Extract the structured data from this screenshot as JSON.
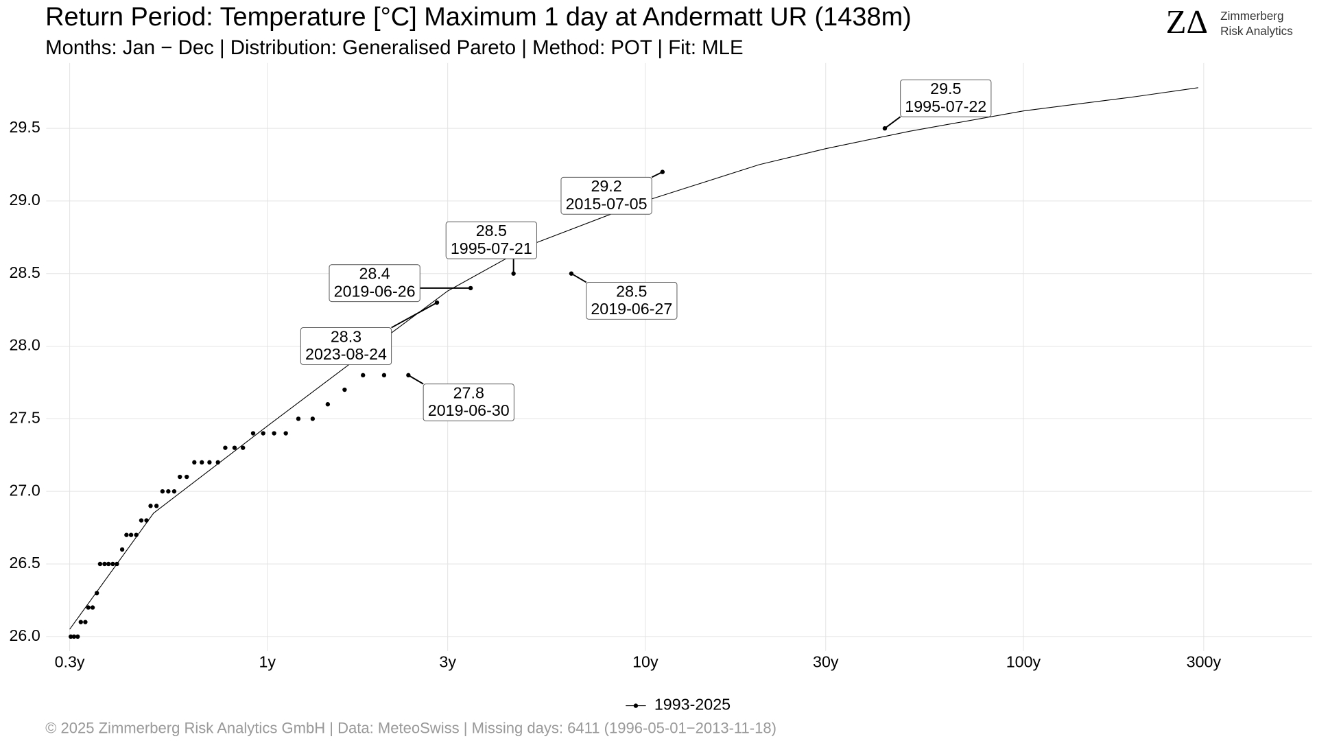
{
  "chart_data": {
    "type": "scatter",
    "title": "Return Period: Temperature [°C] Maximum 1 day at Andermatt  UR (1438m)",
    "subtitle": "Months: Jan − Dec | Distribution: Generalised Pareto | Method: POT | Fit: MLE",
    "footer": "©  2025 Zimmerberg Risk Analytics GmbH | Data: MeteoSwiss | Missing days: 6411 (1996-05-01−2013-11-18)",
    "logo": {
      "mark": "ZΔ",
      "line1": "Zimmerberg",
      "line2": "Risk Analytics"
    },
    "log_x": true,
    "grid": true,
    "legend": "bottom",
    "xlim": [
      0.26,
      580
    ],
    "ylim": [
      25.9,
      29.95
    ],
    "xticks": [
      {
        "value": 0.3,
        "label": "0.3y"
      },
      {
        "value": 1,
        "label": "1y"
      },
      {
        "value": 3,
        "label": "3y"
      },
      {
        "value": 10,
        "label": "10y"
      },
      {
        "value": 30,
        "label": "30y"
      },
      {
        "value": 100,
        "label": "100y"
      },
      {
        "value": 300,
        "label": "300y"
      }
    ],
    "yticks": [
      {
        "value": 26,
        "label": "26.0"
      },
      26.5,
      {
        "value": 27,
        "label": "27.0"
      },
      27.5,
      {
        "value": 28,
        "label": "28.0"
      },
      28.5,
      {
        "value": 29,
        "label": "29.0"
      },
      29.5
    ],
    "series": [
      {
        "name": "1993-2025",
        "color": "#000000",
        "x": [
          0.302,
          0.308,
          0.315,
          0.321,
          0.33,
          0.336,
          0.345,
          0.354,
          0.361,
          0.371,
          0.38,
          0.39,
          0.4,
          0.413,
          0.424,
          0.436,
          0.45,
          0.464,
          0.479,
          0.491,
          0.509,
          0.528,
          0.547,
          0.567,
          0.587,
          0.612,
          0.641,
          0.671,
          0.703,
          0.74,
          0.774,
          0.819,
          0.862,
          0.917,
          0.975,
          1.042,
          1.119,
          1.208,
          1.318,
          1.445,
          1.601,
          1.791,
          2.036,
          2.361,
          2.81,
          3.45,
          4.48,
          6.37,
          11.1,
          43.0
        ],
        "values": [
          26.0,
          26.0,
          26.0,
          26.1,
          26.1,
          26.2,
          26.2,
          26.3,
          26.5,
          26.5,
          26.5,
          26.5,
          26.5,
          26.6,
          26.7,
          26.7,
          26.7,
          26.8,
          26.8,
          26.9,
          26.9,
          27.0,
          27.0,
          27.0,
          27.1,
          27.1,
          27.2,
          27.2,
          27.2,
          27.2,
          27.3,
          27.3,
          27.3,
          27.4,
          27.4,
          27.4,
          27.4,
          27.5,
          27.5,
          27.6,
          27.7,
          27.8,
          27.8,
          27.8,
          28.3,
          28.4,
          28.5,
          28.5,
          29.2,
          29.5
        ]
      }
    ],
    "fit": {
      "color": "#000000",
      "x": [
        0.3,
        0.5,
        1,
        1.8,
        3,
        5,
        10,
        20,
        30,
        50,
        100,
        200,
        290
      ],
      "values": [
        26.05,
        26.85,
        27.45,
        27.95,
        28.38,
        28.7,
        29.0,
        29.25,
        29.36,
        29.48,
        29.62,
        29.72,
        29.78
      ]
    },
    "annotations": [
      {
        "x": 43.0,
        "y": 29.5,
        "date": "1995-07-22"
      },
      {
        "x": 11.1,
        "y": 29.2,
        "date": "2015-07-05"
      },
      {
        "x": 4.48,
        "y": 28.5,
        "date": "1995-07-21"
      },
      {
        "x": 3.45,
        "y": 28.4,
        "date": "2019-06-26"
      },
      {
        "x": 6.37,
        "y": 28.5,
        "date": "2019-06-27"
      },
      {
        "x": 2.81,
        "y": 28.3,
        "date": "2023-08-24"
      },
      {
        "x": 2.361,
        "y": 27.8,
        "date": "2019-06-30"
      }
    ]
  }
}
